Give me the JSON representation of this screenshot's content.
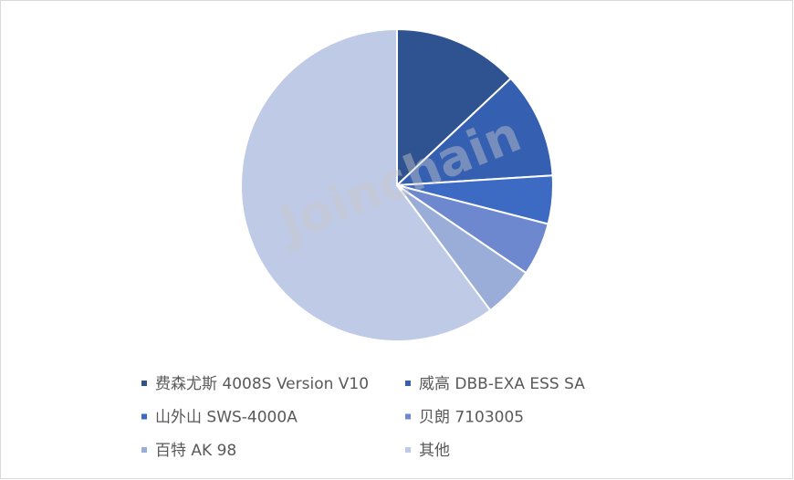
{
  "chart_data": {
    "type": "pie",
    "categories": [
      "费森尤斯 4008S Version V10",
      "威高 DBB-EXA ESS SA",
      "山外山 SWS-4000A",
      "贝朗 7103005",
      "百特 AK 98",
      "其他"
    ],
    "values": [
      13,
      11,
      5,
      5.5,
      5.3,
      60.2
    ],
    "colors": [
      "#2f5290",
      "#3560b2",
      "#3d6bc4",
      "#6d88cf",
      "#9aadd9",
      "#bfcae6"
    ],
    "watermark": "Joinchain"
  }
}
